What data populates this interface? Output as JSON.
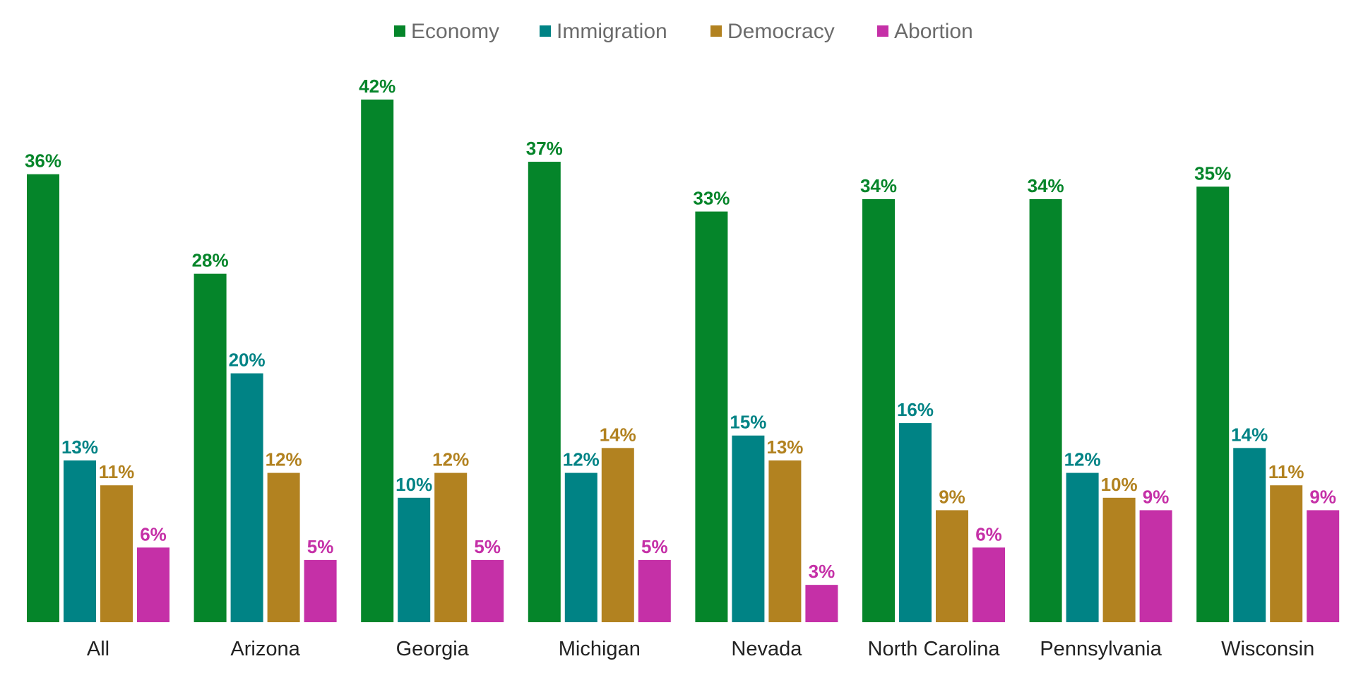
{
  "chart_data": {
    "type": "bar",
    "title": "",
    "xlabel": "",
    "ylabel": "",
    "ylim": [
      0,
      45
    ],
    "grid": false,
    "legend_position": "top-center",
    "categories": [
      "All",
      "Arizona",
      "Georgia",
      "Michigan",
      "Nevada",
      "North Carolina",
      "Pennsylvania",
      "Wisconsin"
    ],
    "series": [
      {
        "name": "Economy",
        "color": "#05852a",
        "values": [
          36,
          28,
          42,
          37,
          33,
          34,
          34,
          35
        ],
        "value_labels": [
          "36%",
          "28%",
          "42%",
          "37%",
          "33%",
          "34%",
          "34%",
          "35%"
        ]
      },
      {
        "name": "Immigration",
        "color": "#008385",
        "values": [
          13,
          20,
          10,
          12,
          15,
          16,
          12,
          14
        ],
        "value_labels": [
          "13%",
          "20%",
          "10%",
          "12%",
          "15%",
          "16%",
          "12%",
          "14%"
        ]
      },
      {
        "name": "Democracy",
        "color": "#b28220",
        "values": [
          11,
          12,
          12,
          14,
          13,
          9,
          10,
          11
        ],
        "value_labels": [
          "11%",
          "12%",
          "12%",
          "14%",
          "13%",
          "9%",
          "10%",
          "11%"
        ]
      },
      {
        "name": "Abortion",
        "color": "#c530a7",
        "values": [
          6,
          5,
          5,
          5,
          3,
          6,
          9,
          9
        ],
        "value_labels": [
          "6%",
          "5%",
          "5%",
          "5%",
          "3%",
          "6%",
          "9%",
          "9%"
        ]
      }
    ]
  }
}
